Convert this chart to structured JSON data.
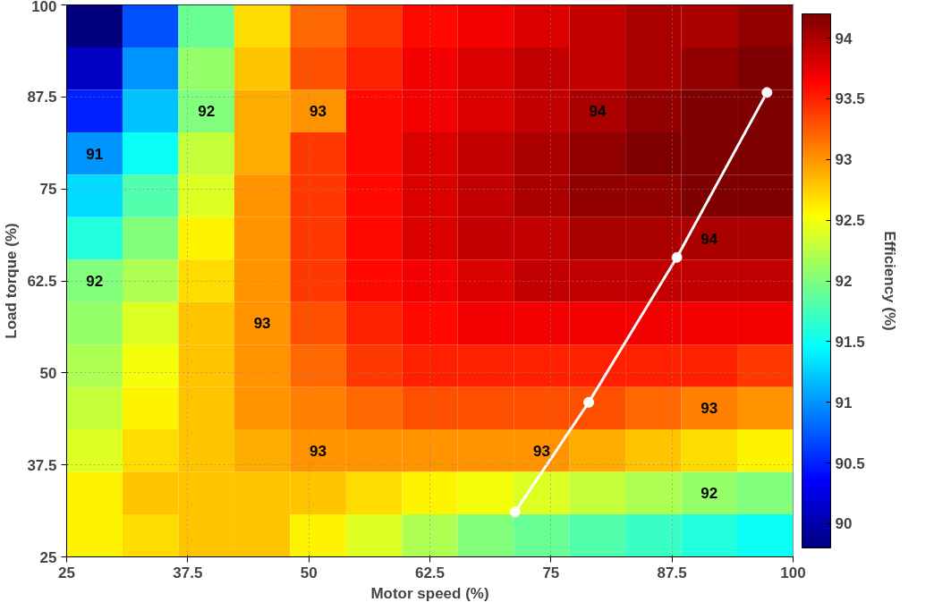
{
  "chart_data": [
    {
      "type": "heatmap",
      "clabel": "Efficiency (%)",
      "tick_labels": false,
      "clim": [
        89.8,
        94.2
      ],
      "cticks": [
        90,
        90.5,
        91,
        91.5,
        92,
        92.5,
        93,
        93.5,
        94
      ],
      "categories": [
        null,
        null,
        null,
        null,
        null,
        null,
        null,
        null,
        null,
        null,
        null,
        null,
        null
      ],
      "y_categories": [
        null,
        null,
        null,
        null,
        null,
        null,
        null,
        null,
        null,
        null,
        null,
        null,
        null
      ],
      "cells": [
        [
          89.8,
          90.7,
          91.9,
          92.7,
          93.2,
          93.4,
          93.6,
          93.7,
          93.8,
          93.9,
          94.0,
          94.0,
          94.1
        ],
        [
          90.1,
          91.0,
          92.1,
          92.8,
          93.3,
          93.5,
          93.7,
          93.8,
          93.9,
          93.9,
          94.0,
          94.1,
          94.2
        ],
        [
          90.5,
          91.2,
          92.0,
          92.9,
          93.0,
          93.6,
          93.7,
          93.8,
          93.9,
          94.0,
          94.1,
          94.2,
          94.2
        ],
        [
          91.0,
          91.5,
          92.3,
          92.9,
          93.4,
          93.6,
          93.8,
          93.9,
          94.0,
          94.1,
          94.2,
          94.2,
          94.2
        ],
        [
          91.3,
          91.8,
          92.4,
          93.0,
          93.4,
          93.6,
          93.8,
          93.9,
          94.0,
          94.1,
          94.1,
          94.2,
          94.2
        ],
        [
          91.6,
          92.0,
          92.6,
          93.0,
          93.4,
          93.6,
          93.8,
          93.9,
          93.9,
          94.0,
          94.0,
          94.0,
          94.0
        ],
        [
          92.0,
          92.2,
          92.7,
          93.0,
          93.4,
          93.6,
          93.7,
          93.8,
          93.9,
          93.9,
          93.9,
          93.9,
          93.9
        ],
        [
          92.1,
          92.4,
          92.8,
          93.0,
          93.3,
          93.5,
          93.6,
          93.7,
          93.7,
          93.7,
          93.7,
          93.7,
          93.7
        ],
        [
          92.2,
          92.5,
          92.8,
          93.0,
          93.2,
          93.4,
          93.5,
          93.5,
          93.5,
          93.5,
          93.5,
          93.5,
          93.4
        ],
        [
          92.3,
          92.6,
          92.8,
          93.0,
          93.1,
          93.2,
          93.3,
          93.3,
          93.3,
          93.3,
          93.2,
          93.1,
          93.0
        ],
        [
          92.4,
          92.7,
          92.8,
          92.9,
          93.0,
          93.0,
          93.0,
          93.0,
          93.0,
          92.9,
          92.8,
          92.7,
          92.6
        ],
        [
          92.6,
          92.8,
          92.8,
          92.8,
          92.8,
          92.7,
          92.6,
          92.5,
          92.4,
          92.3,
          92.2,
          92.1,
          92.0
        ],
        [
          92.6,
          92.7,
          92.8,
          92.8,
          92.6,
          92.4,
          92.2,
          92.0,
          91.9,
          91.8,
          91.7,
          91.6,
          91.5
        ]
      ],
      "cell_labels": [
        [
          null,
          null,
          null,
          null,
          null,
          null,
          null,
          null,
          null,
          null,
          null,
          null,
          null
        ],
        [
          null,
          null,
          null,
          null,
          null,
          null,
          null,
          null,
          null,
          null,
          null,
          null,
          null
        ],
        [
          null,
          null,
          "92",
          null,
          "93",
          null,
          null,
          null,
          null,
          "94",
          null,
          null,
          null
        ],
        [
          "91",
          null,
          null,
          null,
          null,
          null,
          null,
          null,
          null,
          null,
          null,
          null,
          null
        ],
        [
          null,
          null,
          null,
          null,
          null,
          null,
          null,
          null,
          null,
          null,
          null,
          null,
          null
        ],
        [
          null,
          null,
          null,
          null,
          null,
          null,
          null,
          null,
          null,
          null,
          null,
          "94",
          null
        ],
        [
          "92",
          null,
          null,
          null,
          null,
          null,
          null,
          null,
          null,
          null,
          null,
          null,
          null
        ],
        [
          null,
          null,
          null,
          "93",
          null,
          null,
          null,
          null,
          null,
          null,
          null,
          null,
          null
        ],
        [
          null,
          null,
          null,
          null,
          null,
          null,
          null,
          null,
          null,
          null,
          null,
          null,
          null
        ],
        [
          null,
          null,
          null,
          null,
          null,
          null,
          null,
          null,
          null,
          null,
          null,
          "93",
          null
        ],
        [
          null,
          null,
          null,
          null,
          "93",
          null,
          null,
          null,
          "93",
          null,
          null,
          null,
          null
        ],
        [
          null,
          null,
          null,
          null,
          null,
          null,
          null,
          null,
          null,
          null,
          null,
          "92",
          null
        ],
        [
          null,
          null,
          null,
          null,
          null,
          null,
          null,
          null,
          null,
          null,
          null,
          null,
          null
        ]
      ]
    },
    {
      "type": "line",
      "xlabel": "Motor speed (%)",
      "ylabel": "Load torque (%)",
      "grid": true,
      "xlim": [
        25,
        100
      ],
      "ylim": [
        25,
        100
      ],
      "xticks": [
        25,
        37.5,
        50,
        62.5,
        75,
        87.5,
        100
      ],
      "yticks": [
        25,
        37.5,
        50,
        62.5,
        75,
        87.5,
        100
      ],
      "marker": "circle",
      "line_style": "solid",
      "series": [
        {
          "color": "#ffffff",
          "x": [
            71.3,
            78.9,
            88.0,
            97.3
          ],
          "values": [
            31.1,
            46.0,
            65.7,
            88.1
          ]
        }
      ]
    }
  ]
}
